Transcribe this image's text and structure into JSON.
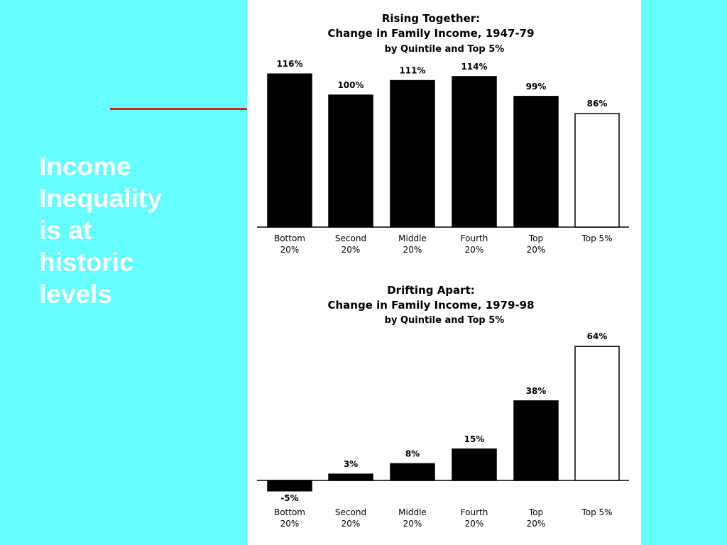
{
  "slide": {
    "title_lines": [
      "Income",
      "Inequality",
      "is at",
      "historic",
      "levels"
    ]
  },
  "colors": {
    "background": "#66ffff",
    "title_text": "#ffffff",
    "accent_rule": "#cc2222",
    "bar_fill": "#000000",
    "highlight_bar_fill": "#ffffff"
  },
  "chart_data": [
    {
      "type": "bar",
      "title": "Rising Together:",
      "subtitle": "Change in Family Income, 1947-79",
      "subsubtitle": "by Quintile and Top 5%",
      "categories": [
        [
          "Bottom",
          "20%"
        ],
        [
          "Second",
          "20%"
        ],
        [
          "Middle",
          "20%"
        ],
        [
          "Fourth",
          "20%"
        ],
        [
          "Top",
          "20%"
        ],
        [
          "Top 5%",
          ""
        ]
      ],
      "values": [
        116,
        100,
        111,
        114,
        99,
        86
      ],
      "value_labels": [
        "116%",
        "100%",
        "111%",
        "114%",
        "99%",
        "86%"
      ],
      "highlight_index": 5,
      "ylim": [
        0,
        116
      ],
      "xlabel": "",
      "ylabel": "",
      "grid": false
    },
    {
      "type": "bar",
      "title": "Drifting Apart:",
      "subtitle": "Change in Family Income, 1979-98",
      "subsubtitle": "by Quintile and Top 5%",
      "categories": [
        [
          "Bottom",
          "20%"
        ],
        [
          "Second",
          "20%"
        ],
        [
          "Middle",
          "20%"
        ],
        [
          "Fourth",
          "20%"
        ],
        [
          "Top",
          "20%"
        ],
        [
          "Top 5%",
          ""
        ]
      ],
      "values": [
        -5,
        3,
        8,
        15,
        38,
        64
      ],
      "value_labels": [
        "-5%",
        "3%",
        "8%",
        "15%",
        "38%",
        "64%"
      ],
      "highlight_index": 5,
      "ylim": [
        -5,
        64
      ],
      "xlabel": "",
      "ylabel": "",
      "grid": false
    }
  ]
}
